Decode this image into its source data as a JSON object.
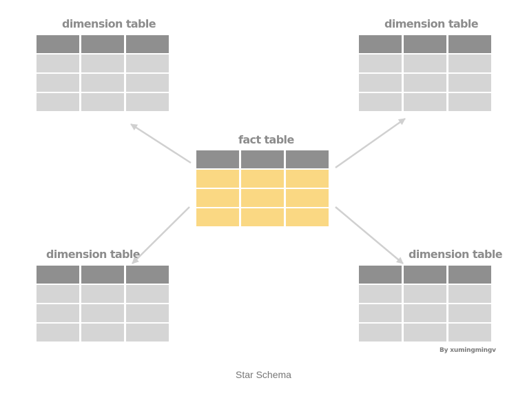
{
  "diagram": {
    "fact": {
      "title": "fact table"
    },
    "dimensions": [
      {
        "title": "dimension table"
      },
      {
        "title": "dimension table"
      },
      {
        "title": "dimension table"
      },
      {
        "title": "dimension table"
      }
    ],
    "author": "By xumingmingv",
    "caption": "Star Schema"
  },
  "colors": {
    "header": "#8f8f8f",
    "dimension_cell": "#d5d5d5",
    "fact_cell": "#fad883",
    "arrow": "#d0d0d0",
    "title_text": "#8c8c8c"
  }
}
